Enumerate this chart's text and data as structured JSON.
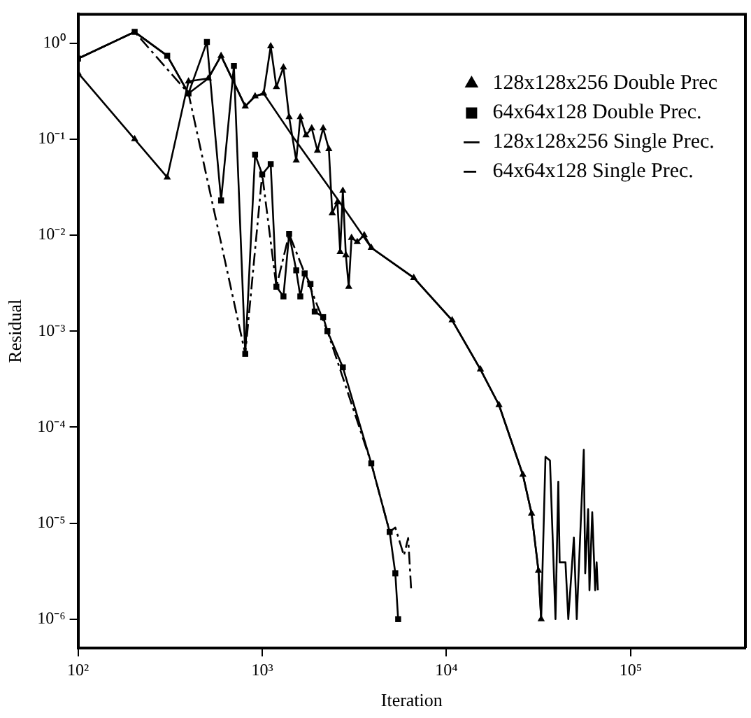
{
  "chart_data": {
    "type": "line",
    "xlabel": "Iteration",
    "ylabel": "Residual",
    "log": "xy",
    "grid": false,
    "legend": "top right",
    "xlim": [
      100,
      420000
    ],
    "ylim": [
      5e-07,
      2
    ],
    "xticks": [
      {
        "value": 100,
        "label": "10²"
      },
      {
        "value": 1000,
        "label": "10³"
      },
      {
        "value": 10000,
        "label": "10⁴"
      },
      {
        "value": 100000,
        "label": "10⁵"
      }
    ],
    "yticks": [
      {
        "value": 1e-06,
        "label": "10⁻⁶"
      },
      {
        "value": 1e-05,
        "label": "10⁻⁵"
      },
      {
        "value": 0.0001,
        "label": "10⁻⁴"
      },
      {
        "value": 0.001,
        "label": "10⁻³"
      },
      {
        "value": 0.01,
        "label": "10⁻²"
      },
      {
        "value": 0.1,
        "label": "10⁻¹"
      },
      {
        "value": 1,
        "label": "10⁰"
      }
    ],
    "series": [
      {
        "name": "128x128x256 Double Prec",
        "color": "#000000",
        "marker": "triangle",
        "line_style": "solid",
        "x": [
          100,
          203,
          305,
          398,
          510,
          598,
          809,
          915,
          1018,
          1112,
          1194,
          1304,
          1400,
          1530,
          1610,
          1729,
          1857,
          1995,
          2142,
          2300,
          2400,
          2560,
          2650,
          2740,
          2845,
          2950,
          3055,
          3280,
          3580,
          3910,
          6650,
          10740,
          15300,
          19300,
          26000,
          29000,
          31600,
          32700
        ],
        "values": [
          0.49,
          0.1,
          0.04,
          0.4,
          0.43,
          0.74,
          0.22,
          0.28,
          0.3,
          0.93,
          0.35,
          0.56,
          0.17,
          0.06,
          0.17,
          0.11,
          0.13,
          0.076,
          0.13,
          0.079,
          0.017,
          0.022,
          0.0067,
          0.029,
          0.0062,
          0.0029,
          0.0094,
          0.0085,
          0.01,
          0.0074,
          0.0036,
          0.0013,
          0.0004,
          0.00017,
          3.2e-05,
          1.26e-05,
          3.2e-06,
          1e-06
        ]
      },
      {
        "name": "64x64x128 Double Prec.",
        "color": "#000000",
        "marker": "square",
        "line_style": "solid",
        "x": [
          100,
          203,
          305,
          398,
          501,
          598,
          702,
          809,
          915,
          1000,
          1112,
          1194,
          1304,
          1400,
          1530,
          1610,
          1700,
          1828,
          1928,
          2142,
          2260,
          2740,
          3910,
          4920,
          5280,
          5470
        ],
        "values": [
          0.69,
          1.31,
          0.74,
          0.3,
          1.03,
          0.023,
          0.58,
          0.00058,
          0.069,
          0.043,
          0.055,
          0.0029,
          0.0023,
          0.0103,
          0.0043,
          0.0023,
          0.004,
          0.0031,
          0.0016,
          0.0014,
          0.001,
          0.00042,
          4.2e-05,
          8.1e-06,
          3e-06,
          1e-06
        ]
      },
      {
        "name": "128x128x256 Single Prec.",
        "color": "#000000",
        "marker": "none",
        "line_style": "solid",
        "x": [
          100,
          203,
          305,
          398,
          510,
          598,
          809,
          915,
          1018,
          1500,
          2500,
          3910,
          6650,
          10740,
          15300,
          19300,
          26000,
          29000,
          31600,
          32700,
          34500,
          36500,
          39100,
          40500,
          41200,
          44300,
          45900,
          49200,
          51000,
          55700,
          56700,
          58800,
          59800,
          61900,
          64200,
          65400,
          66400
        ],
        "values": [
          0.69,
          1.31,
          0.74,
          0.3,
          0.43,
          0.74,
          0.22,
          0.28,
          0.3,
          0.1,
          0.0254,
          0.0074,
          0.0036,
          0.0013,
          0.0004,
          0.00017,
          3.2e-05,
          1.26e-05,
          3.2e-06,
          1e-06,
          4.9e-05,
          4.5e-05,
          1e-06,
          2.7e-05,
          3.9e-06,
          3.9e-06,
          1e-06,
          7.1e-06,
          1e-06,
          5.8e-05,
          3e-06,
          1.4e-05,
          2e-06,
          1.3e-05,
          2e-06,
          3.9e-06,
          2e-06
        ]
      },
      {
        "name": "64x64x128 Single Prec.",
        "color": "#000000",
        "marker": "none",
        "line_style": "dashdot",
        "x": [
          100,
          203,
          398,
          809,
          1000,
          1194,
          1400,
          1700,
          2260,
          3910,
          4920,
          5280,
          5880,
          6200,
          6430
        ],
        "values": [
          0.69,
          1.31,
          0.3,
          0.00058,
          0.043,
          0.0029,
          0.0103,
          0.004,
          0.001,
          4.2e-05,
          8.1e-06,
          9e-06,
          4.6e-06,
          7e-06,
          2.1e-06
        ]
      }
    ]
  }
}
